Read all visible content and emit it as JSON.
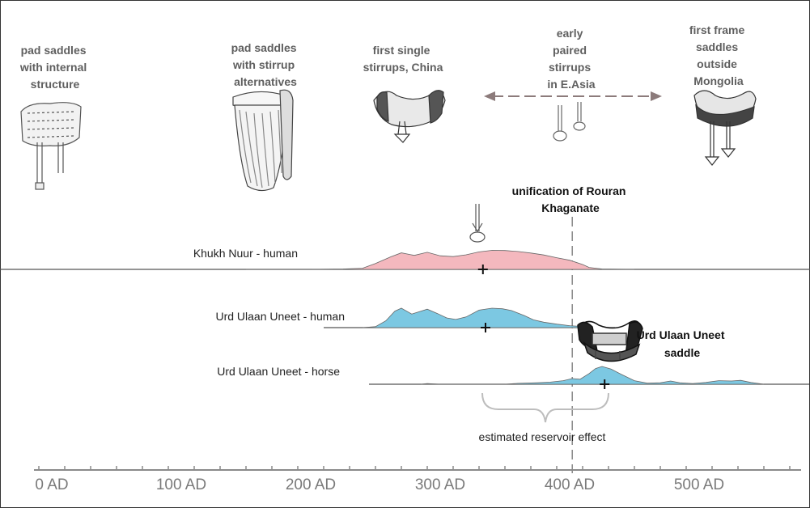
{
  "captions": {
    "pad_internal": [
      "pad saddles",
      "with internal",
      "structure"
    ],
    "pad_stirrup": [
      "pad saddles",
      "with stirrup",
      "alternatives"
    ],
    "single_stirrups": [
      "first single",
      "stirrups, China"
    ],
    "paired_stirrups": [
      "early",
      "paired",
      "stirrups",
      "in E.Asia"
    ],
    "frame_saddles": [
      "first frame",
      "saddles",
      "outside",
      "Mongolia"
    ]
  },
  "unification": [
    "unification of Rouran",
    "Khaganate"
  ],
  "saddle_label": [
    "Urd Ulaan Uneet",
    "saddle"
  ],
  "reservoir_label": "estimated reservoir effect",
  "colors": {
    "human_khukh": "#f4b8be",
    "urd_blue": "#7cc8e2",
    "axis": "#8a8a8a",
    "text_gray": "#5f5f5f"
  },
  "icons": [
    "pad-saddle-icon",
    "stirrup-pad-saddle-icon",
    "single-stirrup-saddle-icon",
    "paired-stirrups-icon",
    "frame-saddle-icon",
    "stirrup-icon",
    "urd-saddle-icon"
  ],
  "chart_data": {
    "type": "area",
    "x_axis": {
      "ticks": [
        0,
        100,
        200,
        300,
        400,
        500
      ],
      "tick_labels": [
        "0 AD",
        "100 AD",
        "200 AD",
        "300 AD",
        "400 AD",
        "500 AD"
      ],
      "range": [
        -15,
        590
      ]
    },
    "events": [
      {
        "label": "unification of Rouran Khaganate",
        "x": 402
      }
    ],
    "series": [
      {
        "name": "Khukh Nuur - human",
        "median": 333,
        "range": [
          -90,
          595
        ],
        "x": [
          150,
          200,
          225,
          240,
          250,
          262,
          270,
          280,
          290,
          300,
          310,
          320,
          330,
          340,
          350,
          360,
          370,
          380,
          390,
          400,
          410,
          415,
          425,
          450
        ],
        "y": [
          0,
          0,
          0.02,
          0.06,
          0.3,
          0.65,
          0.85,
          0.72,
          0.88,
          0.7,
          0.66,
          0.75,
          0.9,
          0.98,
          0.97,
          0.92,
          0.84,
          0.74,
          0.6,
          0.47,
          0.25,
          0.1,
          0.02,
          0
        ]
      },
      {
        "name": "Urd Ulaan Uneet - human",
        "median": 335,
        "range": [
          210,
          435
        ],
        "x": [
          240,
          250,
          258,
          265,
          270,
          278,
          283,
          290,
          298,
          305,
          312,
          320,
          330,
          340,
          348,
          355,
          365,
          372,
          380,
          390,
          400,
          410,
          420,
          425
        ],
        "y": [
          0,
          0.05,
          0.35,
          0.85,
          1.0,
          0.7,
          0.8,
          0.95,
          0.72,
          0.5,
          0.42,
          0.55,
          0.9,
          1.0,
          0.97,
          0.88,
          0.62,
          0.4,
          0.28,
          0.18,
          0.1,
          0.06,
          0.03,
          0
        ]
      },
      {
        "name": "Urd Ulaan Uneet - horse",
        "median": 427,
        "range": [
          245,
          585
        ],
        "x": [
          285,
          290,
          300,
          350,
          360,
          375,
          385,
          395,
          402,
          408,
          415,
          420,
          425,
          432,
          440,
          450,
          460,
          470,
          478,
          485,
          495,
          505,
          515,
          525,
          532,
          540,
          550
        ],
        "y": [
          0,
          0.04,
          0,
          0,
          0.05,
          0.08,
          0.12,
          0.2,
          0.32,
          0.28,
          0.6,
          0.88,
          1.0,
          0.85,
          0.55,
          0.2,
          0.06,
          0.08,
          0.18,
          0.08,
          0.04,
          0.1,
          0.2,
          0.18,
          0.22,
          0.1,
          0
        ]
      }
    ]
  }
}
